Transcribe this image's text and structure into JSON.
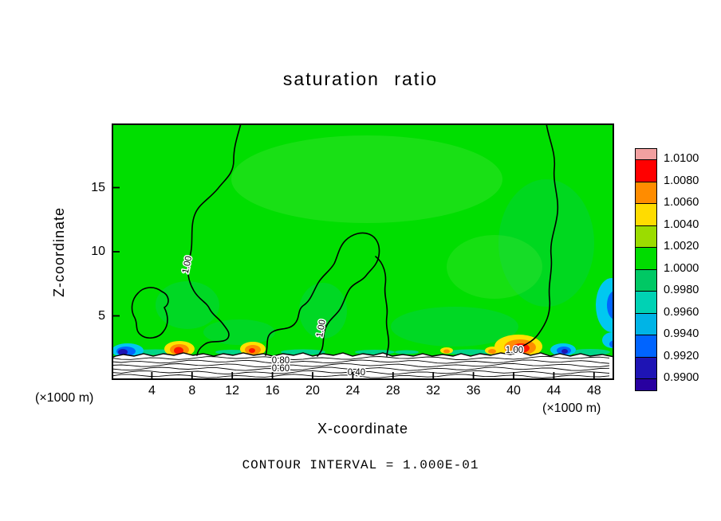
{
  "title": "saturation ratio",
  "axes": {
    "x_label": "X-coordinate",
    "y_label": "Z-coordinate",
    "x_unit_left": "(×1000 m)",
    "x_unit_right": "(×1000 m)",
    "x_ticks": [
      4,
      8,
      12,
      16,
      20,
      24,
      28,
      32,
      36,
      40,
      44,
      48
    ],
    "y_ticks": [
      5,
      10,
      15
    ]
  },
  "caption": "CONTOUR INTERVAL = 1.000E-01",
  "colorbar": {
    "labels": [
      "1.0100",
      "1.0080",
      "1.0060",
      "1.0040",
      "1.0020",
      "1.0000",
      "0.9980",
      "0.9960",
      "0.9940",
      "0.9920",
      "0.9900"
    ],
    "colors": [
      "#F2A0A0",
      "#FF0000",
      "#FF8C00",
      "#FFDC00",
      "#9BDC00",
      "#00DC00",
      "#00C864",
      "#00D2B4",
      "#00B4E6",
      "#0064FF",
      "#1E14B4",
      "#2800A0"
    ]
  },
  "contour_labels": [
    "1.00",
    "1.00",
    "0.80",
    "0.60",
    "0.40",
    "1.00"
  ],
  "chart_data": {
    "type": "heatmap",
    "subtype": "filled-contour-with-line-contours",
    "title": "saturation ratio",
    "xlabel": "X-coordinate (×1000 m)",
    "ylabel": "Z-coordinate (×1000 m)",
    "x_range": [
      0,
      50
    ],
    "y_range": [
      0,
      20
    ],
    "x_tick_labels": [
      4,
      8,
      12,
      16,
      20,
      24,
      28,
      32,
      36,
      40,
      44,
      48
    ],
    "y_tick_labels": [
      5,
      10,
      15
    ],
    "fill_levels": [
      0.99,
      0.992,
      0.994,
      0.996,
      0.998,
      1.0,
      1.002,
      1.004,
      1.006,
      1.008,
      1.01
    ],
    "line_contour_interval": 0.1,
    "labeled_line_contours": [
      0.4,
      0.6,
      0.8,
      1.0
    ],
    "legend_position": "right",
    "grid": false,
    "field_summary": {
      "interior": "nearly uniform at about 1.000-1.002 (green) through most of the domain above z=2",
      "surface_layer": "saturation ratio drops below 0.99 to about 0.4 in the lowest ~2 km (white band with line contours every 0.1)",
      "supersaturation_maxima_near_surface_x": [
        7,
        14,
        41
      ],
      "subsaturation_minima_near_surface_x": [
        2,
        45
      ],
      "subsaturation_patch": "cyan/blue patch at right boundary near z=6"
    }
  }
}
